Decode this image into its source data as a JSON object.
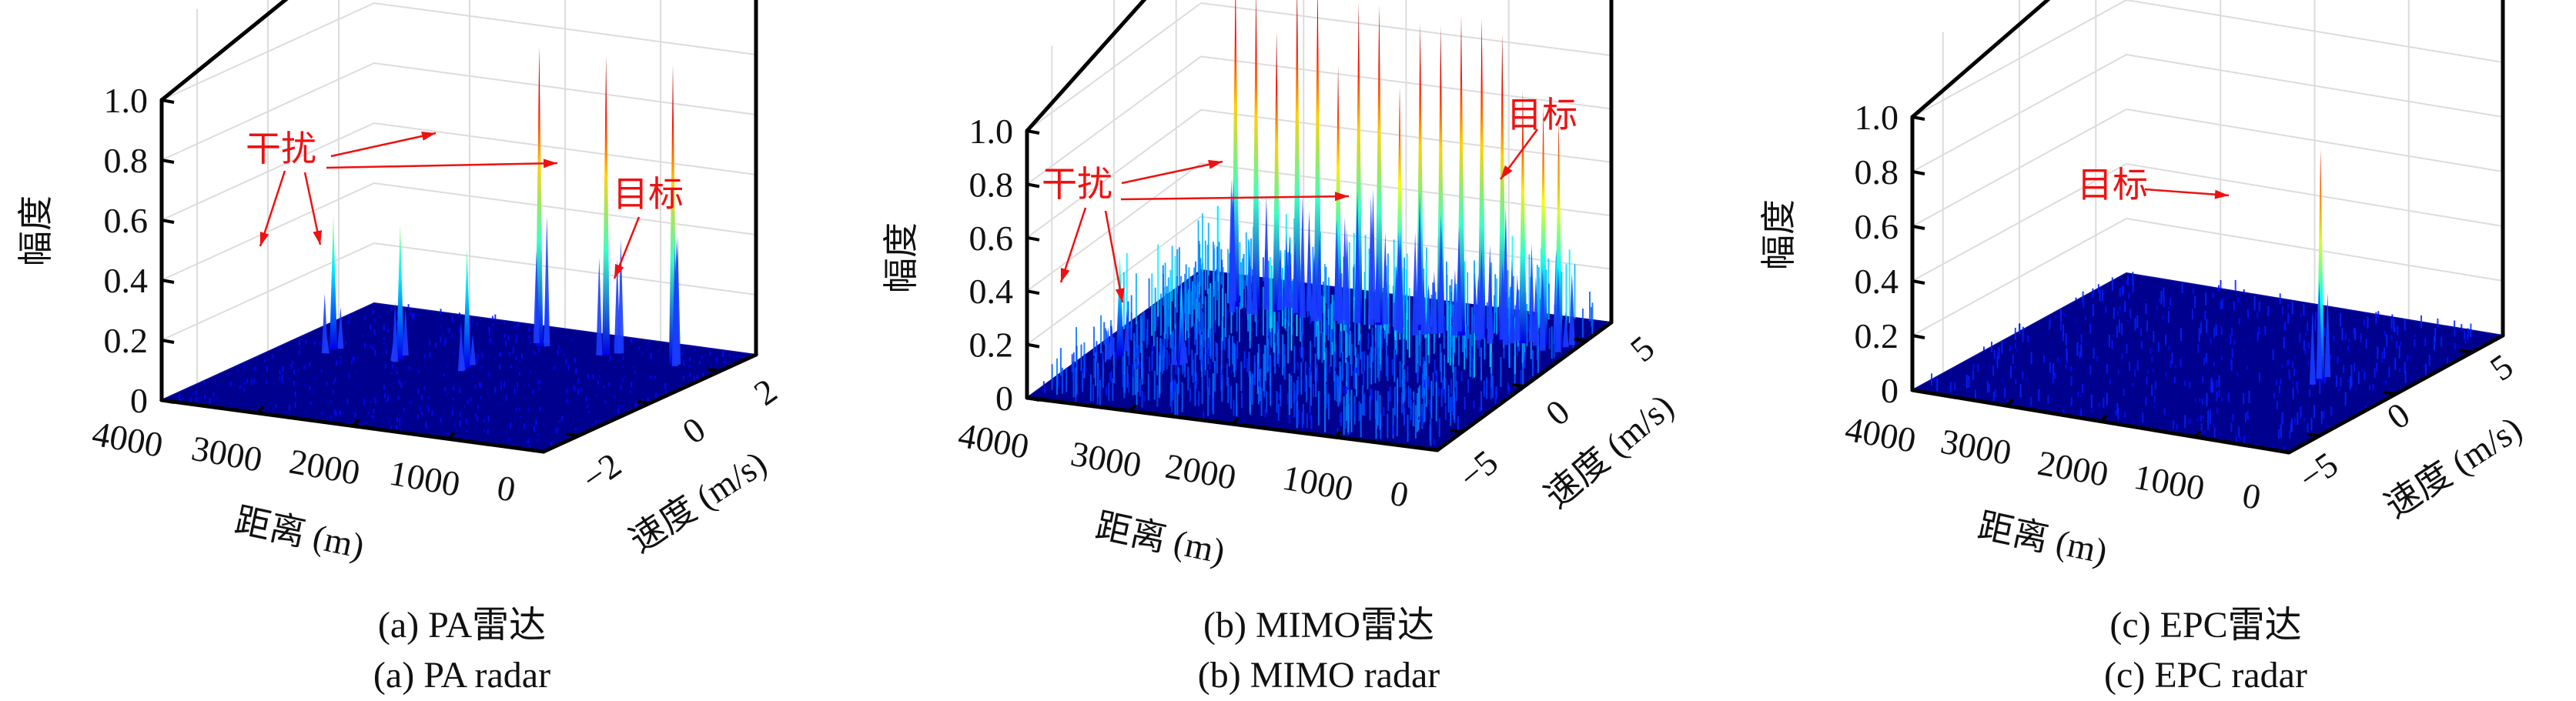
{
  "chart_data": [
    {
      "type": "surface3d",
      "id": "panel-a",
      "caption_cn": "(a) PA雷达",
      "caption_en": "(a) PA radar",
      "zlabel": "幅度",
      "xlabel": "距离 (m)",
      "ylabel": "速度 (m/s)",
      "z_ticks": [
        "0",
        "0.2",
        "0.4",
        "0.6",
        "0.8",
        "1.0"
      ],
      "z_tick_values": [
        0,
        0.2,
        0.4,
        0.6,
        0.8,
        1.0
      ],
      "x_ticks": [
        "4000",
        "3000",
        "2000",
        "1000",
        "0"
      ],
      "y_ticks": [
        "−2",
        "0",
        "2"
      ],
      "zlim": [
        0,
        1.0
      ],
      "grid": true,
      "colormap": "jet",
      "peaks": [
        {
          "range_m": 3500,
          "velocity": 0.5,
          "amplitude": 0.45,
          "kind": "interference"
        },
        {
          "range_m": 2800,
          "velocity": 0.5,
          "amplitude": 0.45,
          "kind": "interference"
        },
        {
          "range_m": 2100,
          "velocity": 0.5,
          "amplitude": 0.4,
          "kind": "interference"
        },
        {
          "range_m": 1900,
          "velocity": 2.0,
          "amplitude": 1.0,
          "kind": "interference"
        },
        {
          "range_m": 1200,
          "velocity": 2.0,
          "amplitude": 1.0,
          "kind": "interference"
        },
        {
          "range_m": 500,
          "velocity": 2.0,
          "amplitude": 1.0,
          "kind": "target"
        }
      ],
      "annotations": [
        {
          "text": "干扰",
          "role": "interference"
        },
        {
          "text": "目标",
          "role": "target"
        }
      ]
    },
    {
      "type": "surface3d",
      "id": "panel-b",
      "caption_cn": "(b) MIMO雷达",
      "caption_en": "(b) MIMO radar",
      "zlabel": "幅度",
      "xlabel": "距离 (m)",
      "ylabel": "速度 (m/s)",
      "z_ticks": [
        "0",
        "0.2",
        "0.4",
        "0.6",
        "0.8",
        "1.0"
      ],
      "z_tick_values": [
        0,
        0.2,
        0.4,
        0.6,
        0.8,
        1.0
      ],
      "x_ticks": [
        "4000",
        "3000",
        "2000",
        "1000",
        "0"
      ],
      "y_ticks": [
        "−5",
        "0",
        "5"
      ],
      "zlim": [
        0,
        1.0
      ],
      "grid": true,
      "colormap": "jet",
      "noise_floor": 0.3,
      "peaks": [
        {
          "range_m": 3700,
          "velocity": -2,
          "amplitude": 0.38,
          "kind": "interference"
        },
        {
          "range_m": 3100,
          "velocity": -2,
          "amplitude": 0.33,
          "kind": "interference"
        },
        {
          "range_m": 3300,
          "velocity": 4,
          "amplitude": 1.25,
          "kind": "interference"
        },
        {
          "range_m": 3100,
          "velocity": 4,
          "amplitude": 1.2,
          "kind": "interference"
        },
        {
          "range_m": 2900,
          "velocity": 4,
          "amplitude": 1.05,
          "kind": "interference"
        },
        {
          "range_m": 2700,
          "velocity": 4,
          "amplitude": 1.25,
          "kind": "interference"
        },
        {
          "range_m": 2500,
          "velocity": 4,
          "amplitude": 1.25,
          "kind": "interference"
        },
        {
          "range_m": 2300,
          "velocity": 4,
          "amplitude": 0.95,
          "kind": "interference"
        },
        {
          "range_m": 2100,
          "velocity": 4,
          "amplitude": 1.2,
          "kind": "interference"
        },
        {
          "range_m": 1900,
          "velocity": 4,
          "amplitude": 1.2,
          "kind": "interference"
        },
        {
          "range_m": 1700,
          "velocity": 4,
          "amplitude": 0.9,
          "kind": "interference"
        },
        {
          "range_m": 1500,
          "velocity": 4,
          "amplitude": 1.15,
          "kind": "interference"
        },
        {
          "range_m": 1300,
          "velocity": 4,
          "amplitude": 1.15,
          "kind": "interference"
        },
        {
          "range_m": 1100,
          "velocity": 4,
          "amplitude": 1.2,
          "kind": "interference"
        },
        {
          "range_m": 900,
          "velocity": 4,
          "amplitude": 1.2,
          "kind": "interference"
        },
        {
          "range_m": 700,
          "velocity": 4,
          "amplitude": 1.15,
          "kind": "interference"
        },
        {
          "range_m": 500,
          "velocity": 4,
          "amplitude": 0.95,
          "kind": "interference"
        },
        {
          "range_m": 300,
          "velocity": 4,
          "amplitude": 0.9,
          "kind": "interference"
        },
        {
          "range_m": 150,
          "velocity": 4,
          "amplitude": 0.85,
          "kind": "target"
        }
      ],
      "annotations": [
        {
          "text": "干扰",
          "role": "interference"
        },
        {
          "text": "目标",
          "role": "target"
        }
      ]
    },
    {
      "type": "surface3d",
      "id": "panel-c",
      "caption_cn": "(c) EPC雷达",
      "caption_en": "(c) EPC radar",
      "zlabel": "幅度",
      "xlabel": "距离 (m)",
      "ylabel": "速度 (m/s)",
      "z_ticks": [
        "0",
        "0.2",
        "0.4",
        "0.6",
        "0.8",
        "1.0"
      ],
      "z_tick_values": [
        0,
        0.2,
        0.4,
        0.6,
        0.8,
        1.0
      ],
      "x_ticks": [
        "4000",
        "3000",
        "2000",
        "1000",
        "0"
      ],
      "y_ticks": [
        "−5",
        "0",
        "5"
      ],
      "zlim": [
        0,
        1.0
      ],
      "grid": true,
      "colormap": "jet",
      "noise_floor": 0.05,
      "peaks": [
        {
          "range_m": 800,
          "velocity": 0,
          "amplitude": 0.85,
          "kind": "target"
        }
      ],
      "annotations": [
        {
          "text": "目标",
          "role": "target"
        }
      ]
    }
  ]
}
